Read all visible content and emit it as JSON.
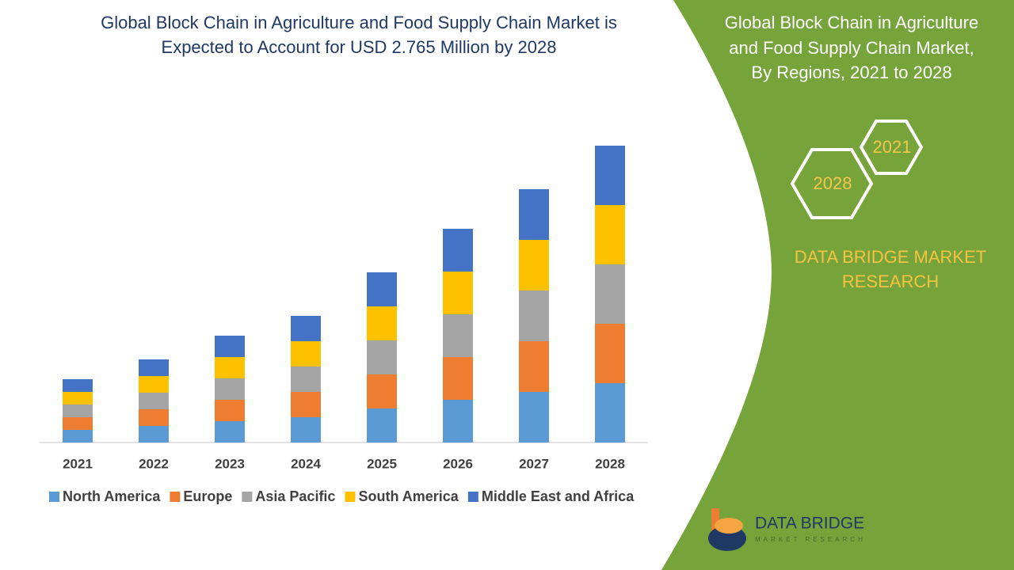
{
  "chart_data": {
    "type": "stacked_bar",
    "title": [
      "Global Block Chain in Agriculture and Food Supply Chain Market is",
      "Expected to Account for USD 2.765 Million by 2028"
    ],
    "categories": [
      "2021",
      "2022",
      "2023",
      "2024",
      "2025",
      "2026",
      "2027",
      "2028"
    ],
    "series": [
      {
        "name": "North America",
        "color": "#5b9bd5",
        "values": [
          16,
          21,
          27,
          32,
          43,
          54,
          64,
          75
        ]
      },
      {
        "name": "Europe",
        "color": "#ed7d31",
        "values": [
          16,
          21,
          27,
          32,
          43,
          54,
          64,
          75
        ]
      },
      {
        "name": "Asia Pacific",
        "color": "#a5a5a5",
        "values": [
          16,
          21,
          27,
          32,
          43,
          54,
          64,
          75
        ]
      },
      {
        "name": "South America",
        "color": "#ffc000",
        "values": [
          16,
          21,
          27,
          32,
          43,
          54,
          64,
          75
        ]
      },
      {
        "name": "Middle East and Africa",
        "color": "#4472c4",
        "values": [
          16,
          21,
          27,
          32,
          43,
          54,
          64,
          75
        ]
      }
    ]
  },
  "panel": {
    "title": [
      "Global Block Chain in Agriculture",
      "and Food Supply Chain Market,",
      "By Regions, 2021 to 2028"
    ],
    "badges": [
      "2021",
      "2028"
    ],
    "brand": [
      "DATA BRIDGE MARKET",
      "RESEARCH"
    ],
    "logo": "DATA BRIDGE",
    "logo_sub": "MARKET RESEARCH"
  }
}
